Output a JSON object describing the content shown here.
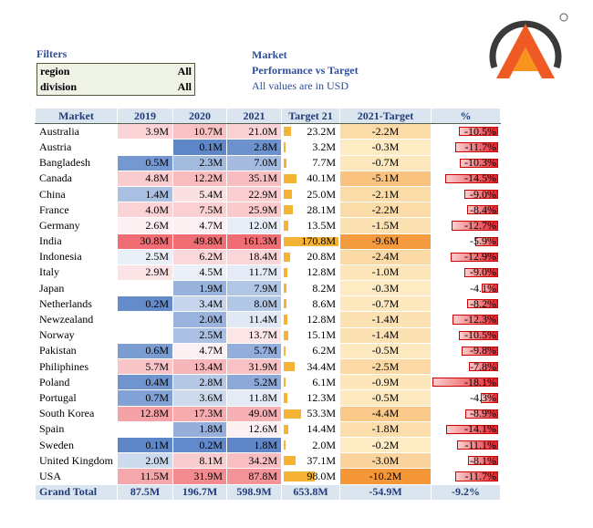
{
  "filters": {
    "title": "Filters",
    "items": [
      [
        "region",
        "All"
      ],
      [
        "division",
        "All"
      ]
    ]
  },
  "header": {
    "title": "Market",
    "subtitle": "Performance vs Target",
    "note": "All values are in USD"
  },
  "table": {
    "columns": [
      "Market",
      "2019",
      "2020",
      "2021",
      "Target 21",
      "2021-Target",
      "%"
    ],
    "rows": [
      [
        "Australia",
        "3.9M",
        "10.7M",
        "21.0M",
        "23.2M",
        "-2.2M",
        "-10.5%"
      ],
      [
        "Austria",
        null,
        "0.1M",
        "2.8M",
        "3.2M",
        "-0.3M",
        "-11.7%"
      ],
      [
        "Bangladesh",
        "0.5M",
        "2.3M",
        "7.0M",
        "7.7M",
        "-0.7M",
        "-10.3%"
      ],
      [
        "Canada",
        "4.8M",
        "12.2M",
        "35.1M",
        "40.1M",
        "-5.1M",
        "-14.5%"
      ],
      [
        "China",
        "1.4M",
        "5.4M",
        "22.9M",
        "25.0M",
        "-2.1M",
        "-9.0%"
      ],
      [
        "France",
        "4.0M",
        "7.5M",
        "25.9M",
        "28.1M",
        "-2.2M",
        "-8.4%"
      ],
      [
        "Germany",
        "2.6M",
        "4.7M",
        "12.0M",
        "13.5M",
        "-1.5M",
        "-12.7%"
      ],
      [
        "India",
        "30.8M",
        "49.8M",
        "161.3M",
        "170.8M",
        "-9.6M",
        "-5.9%"
      ],
      [
        "Indonesia",
        "2.5M",
        "6.2M",
        "18.4M",
        "20.8M",
        "-2.4M",
        "-12.9%"
      ],
      [
        "Italy",
        "2.9M",
        "4.5M",
        "11.7M",
        "12.8M",
        "-1.0M",
        "-9.0%"
      ],
      [
        "Japan",
        null,
        "1.9M",
        "7.9M",
        "8.2M",
        "-0.3M",
        "-4.1%"
      ],
      [
        "Netherlands",
        "0.2M",
        "3.4M",
        "8.0M",
        "8.6M",
        "-0.7M",
        "-8.2%"
      ],
      [
        "Newzealand",
        null,
        "2.0M",
        "11.4M",
        "12.8M",
        "-1.4M",
        "-12.3%"
      ],
      [
        "Norway",
        null,
        "2.5M",
        "13.7M",
        "15.1M",
        "-1.4M",
        "-10.5%"
      ],
      [
        "Pakistan",
        "0.6M",
        "4.7M",
        "5.7M",
        "6.2M",
        "-0.5M",
        "-9.8%"
      ],
      [
        "Philiphines",
        "5.7M",
        "13.4M",
        "31.9M",
        "34.4M",
        "-2.5M",
        "-7.8%"
      ],
      [
        "Poland",
        "0.4M",
        "2.8M",
        "5.2M",
        "6.1M",
        "-0.9M",
        "-18.1%"
      ],
      [
        "Portugal",
        "0.7M",
        "3.6M",
        "11.8M",
        "12.3M",
        "-0.5M",
        "-4.3%"
      ],
      [
        "South Korea",
        "12.8M",
        "17.3M",
        "49.0M",
        "53.3M",
        "-4.4M",
        "-8.9%"
      ],
      [
        "Spain",
        null,
        "1.8M",
        "12.6M",
        "14.4M",
        "-1.8M",
        "-14.1%"
      ],
      [
        "Sweden",
        "0.1M",
        "0.2M",
        "1.8M",
        "2.0M",
        "-0.2M",
        "-11.1%"
      ],
      [
        "United Kingdom",
        "2.0M",
        "8.1M",
        "34.2M",
        "37.1M",
        "-3.0M",
        "-8.1%"
      ],
      [
        "USA",
        "11.5M",
        "31.9M",
        "87.8M",
        "98.0M",
        "-10.2M",
        "-11.7%"
      ]
    ],
    "total": [
      "Grand Total",
      "87.5M",
      "196.7M",
      "598.9M",
      "653.8M",
      "-54.9M",
      "-9.2%"
    ]
  }
}
